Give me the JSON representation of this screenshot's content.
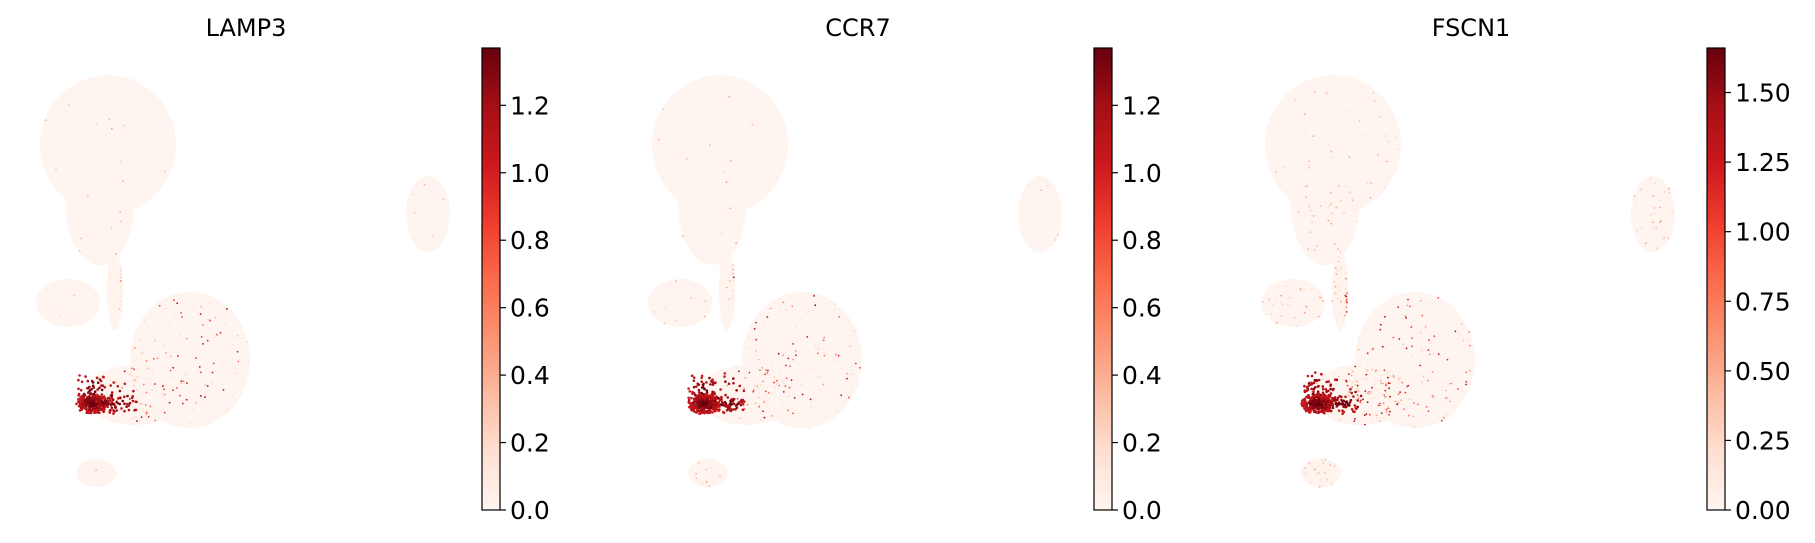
{
  "chart_data": [
    {
      "type": "scatter",
      "title": "LAMP3",
      "xlabel": "",
      "ylabel": "",
      "colorbar": {
        "min": 0.0,
        "max": 1.37,
        "ticks": [
          "0.0",
          "0.2",
          "0.4",
          "0.6",
          "0.8",
          "1.0",
          "1.2"
        ],
        "tick_values": [
          0,
          0.2,
          0.4,
          0.6,
          0.8,
          1.0,
          1.2
        ]
      },
      "colormap": "Reds",
      "hot_spot": "dense cluster left of lower-middle lobe",
      "seed": 11
    },
    {
      "type": "scatter",
      "title": "CCR7",
      "xlabel": "",
      "ylabel": "",
      "colorbar": {
        "min": 0.0,
        "max": 1.37,
        "ticks": [
          "0.0",
          "0.2",
          "0.4",
          "0.6",
          "0.8",
          "1.0",
          "1.2"
        ],
        "tick_values": [
          0,
          0.2,
          0.4,
          0.6,
          0.8,
          1.0,
          1.2
        ]
      },
      "colormap": "Reds",
      "hot_spot": "dense cluster left of lower-middle lobe",
      "seed": 23
    },
    {
      "type": "scatter",
      "title": "FSCN1",
      "xlabel": "",
      "ylabel": "",
      "colorbar": {
        "min": 0.0,
        "max": 1.66,
        "ticks": [
          "0.00",
          "0.25",
          "0.50",
          "0.75",
          "1.00",
          "1.25",
          "1.50"
        ],
        "tick_values": [
          0,
          0.25,
          0.5,
          0.75,
          1.0,
          1.25,
          1.5
        ]
      },
      "colormap": "Reds",
      "hot_spot": "dense cluster left of lower-middle lobe",
      "seed": 37
    }
  ],
  "colors": {
    "low": "#fff5f0",
    "mid": "#fb6a4a",
    "high": "#67000d"
  }
}
